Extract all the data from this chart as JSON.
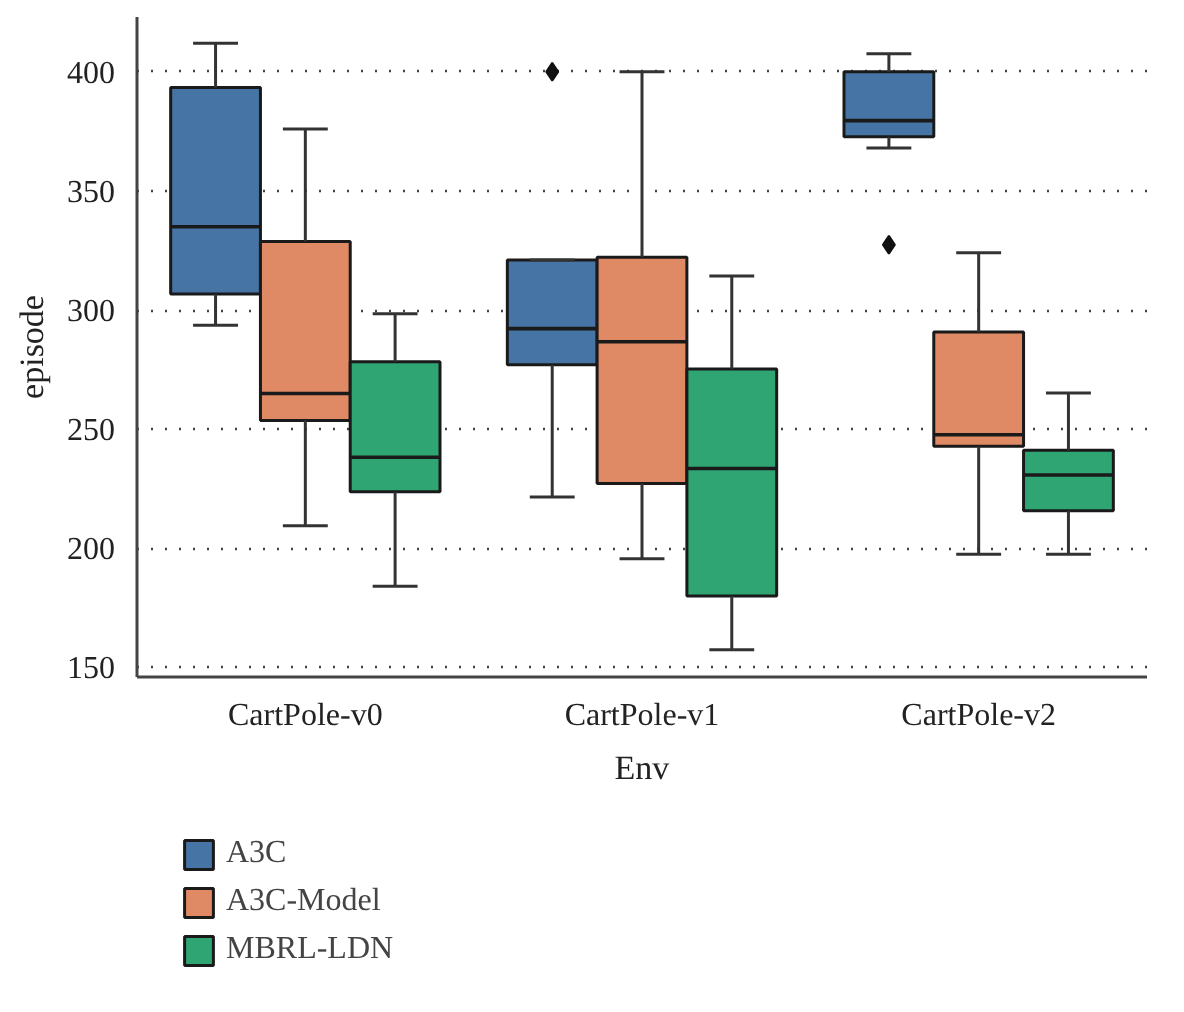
{
  "chart_data": {
    "type": "box",
    "xlabel": "Env",
    "ylabel": "episode",
    "categories": [
      "CartPole-v0",
      "CartPole-v1",
      "CartPole-v2"
    ],
    "ylim": [
      146,
      423
    ],
    "yticks": [
      150,
      200,
      250,
      300,
      350,
      400
    ],
    "grid": "y",
    "legend": "bottom left",
    "series": [
      {
        "name": "A3C",
        "color": "#4674a4",
        "boxes": [
          {
            "low": 293.6,
            "q1": 306.7,
            "median": 335,
            "q3": 393.4,
            "high": 412
          },
          {
            "low": 221.5,
            "q1": 277,
            "median": 292.2,
            "q3": 321,
            "high": 321,
            "outliers": [
              400
            ]
          },
          {
            "low": 368,
            "q1": 372.7,
            "median": 379.5,
            "q3": 400,
            "high": 407.6,
            "outliers": [
              327.4
            ]
          }
        ]
      },
      {
        "name": "A3C-Model",
        "color": "#e08a65",
        "boxes": [
          {
            "low": 209.5,
            "q1": 253.7,
            "median": 265,
            "q3": 328.8,
            "high": 376
          },
          {
            "low": 195.6,
            "q1": 227.2,
            "median": 286.7,
            "q3": 322.2,
            "high": 400
          },
          {
            "low": 197.5,
            "q1": 242.8,
            "median": 247.7,
            "q3": 290.8,
            "high": 324.1
          }
        ]
      },
      {
        "name": "MBRL-LDN",
        "color": "#2fa574",
        "boxes": [
          {
            "low": 184.1,
            "q1": 223.7,
            "median": 238.2,
            "q3": 278.3,
            "high": 298.5
          },
          {
            "low": 157.4,
            "q1": 180,
            "median": 233.5,
            "q3": 275.3,
            "high": 314.3
          },
          {
            "low": 197.5,
            "q1": 215.8,
            "median": 230.8,
            "q3": 241.2,
            "high": 265.2
          }
        ]
      }
    ]
  }
}
